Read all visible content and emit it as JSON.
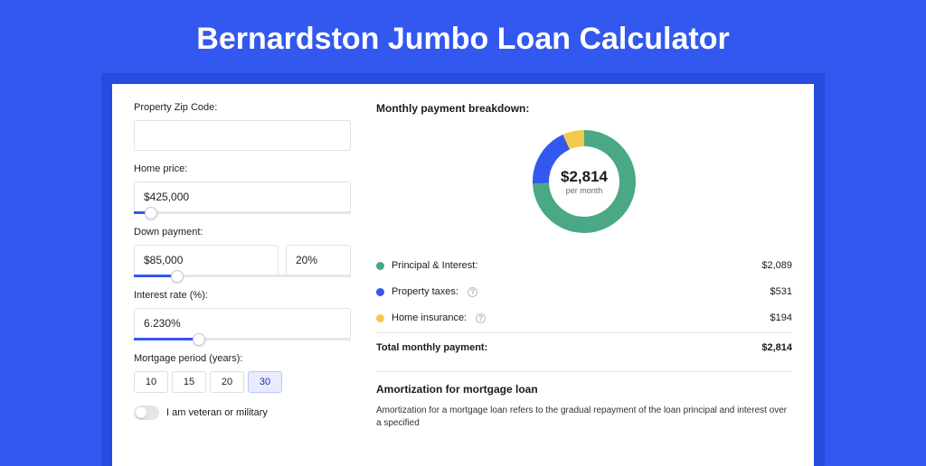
{
  "title": "Bernardston Jumbo Loan Calculator",
  "colors": {
    "page_bg": "#3358f0",
    "card_wrap_bg": "#274bdc",
    "card_bg": "#ffffff",
    "accent": "#3358f0",
    "slider_track": "#e6e6ea",
    "principal": "#4aa884",
    "taxes": "#3358f0",
    "insurance": "#f2c94c"
  },
  "form": {
    "zip": {
      "label": "Property Zip Code:",
      "value": ""
    },
    "home_price": {
      "label": "Home price:",
      "value": "$425,000",
      "slider_pct": 8
    },
    "down_payment": {
      "label": "Down payment:",
      "amount": "$85,000",
      "pct": "20%",
      "slider_pct": 20
    },
    "interest_rate": {
      "label": "Interest rate (%):",
      "value": "6.230%",
      "slider_pct": 30
    },
    "period": {
      "label": "Mortgage period (years):",
      "options": [
        "10",
        "15",
        "20",
        "30"
      ],
      "selected": "30"
    },
    "veteran": {
      "label": "I am veteran or military",
      "on": false
    }
  },
  "breakdown": {
    "title": "Monthly payment breakdown:",
    "donut": {
      "amount": "$2,814",
      "sub": "per month",
      "segments": [
        {
          "key": "principal",
          "pct": 74.2,
          "color": "#4aa884"
        },
        {
          "key": "taxes",
          "pct": 18.9,
          "color": "#3358f0"
        },
        {
          "key": "insurance",
          "pct": 6.9,
          "color": "#f2c94c"
        }
      ]
    },
    "rows": [
      {
        "label": "Principal & Interest:",
        "value": "$2,089",
        "color": "#4aa884",
        "info": false
      },
      {
        "label": "Property taxes:",
        "value": "$531",
        "color": "#3358f0",
        "info": true
      },
      {
        "label": "Home insurance:",
        "value": "$194",
        "color": "#f2c94c",
        "info": true
      }
    ],
    "total": {
      "label": "Total monthly payment:",
      "value": "$2,814"
    }
  },
  "amortization": {
    "title": "Amortization for mortgage loan",
    "body": "Amortization for a mortgage loan refers to the gradual repayment of the loan principal and interest over a specified"
  }
}
